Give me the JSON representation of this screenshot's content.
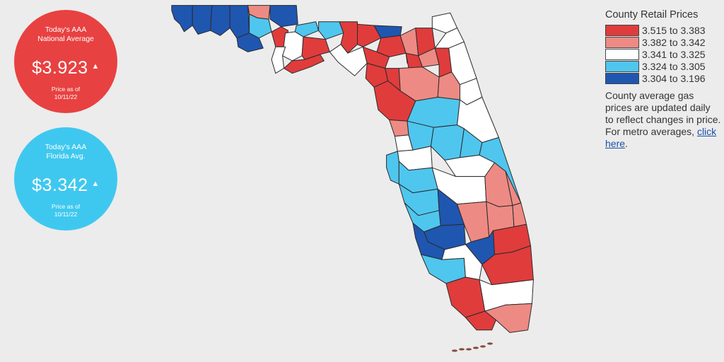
{
  "national": {
    "line1": "Today's AAA",
    "line2": "National Average",
    "price": "$3.923",
    "arrow": "▲",
    "date_label": "Price as of",
    "date": "10/11/22",
    "color": "#e84141"
  },
  "florida": {
    "line1": "Today's AAA",
    "line2": "Florida Avg.",
    "price": "$3.342",
    "arrow": "▲",
    "date_label": "Price as of",
    "date": "10/11/22",
    "color": "#3fc8ef"
  },
  "legend": {
    "title": "County Retail Prices",
    "items": [
      {
        "label": "3.515 to 3.383",
        "color": "#e03c3c"
      },
      {
        "label": "3.382 to 3.342",
        "color": "#ee8a84"
      },
      {
        "label": "3.341 to 3.325",
        "color": "#ffffff"
      },
      {
        "label": "3.324 to 3.305",
        "color": "#4fc6ee"
      },
      {
        "label": "3.304 to 3.196",
        "color": "#1f56b0"
      }
    ],
    "note_before": "County average gas prices are updated daily to reflect changes in price. For metro averages, ",
    "link_text": "click here",
    "note_after": "."
  },
  "map": {
    "state": "Florida",
    "outline_color": "#2b2b2b",
    "ocean_color": "#ececec"
  }
}
